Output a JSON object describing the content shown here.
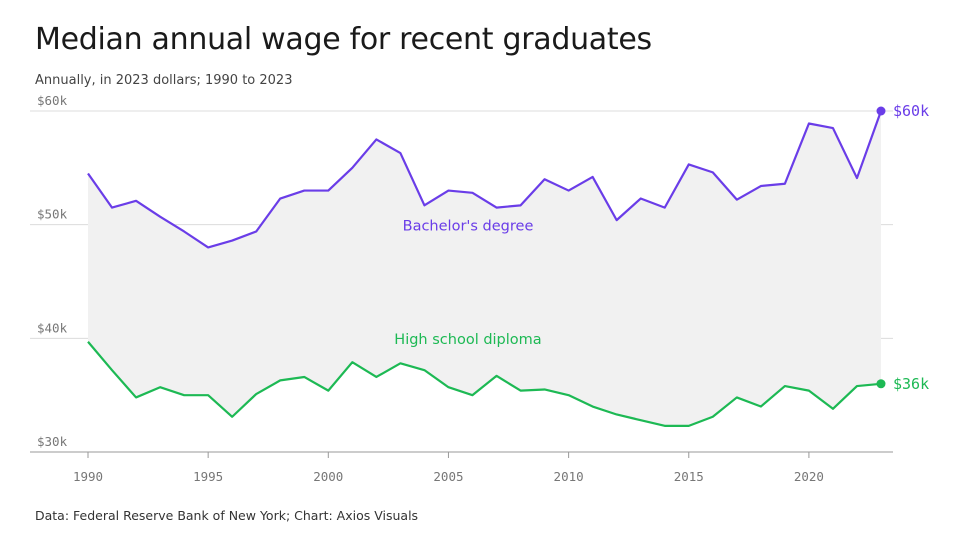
{
  "title": "Median annual wage for recent graduates",
  "subtitle": "Annually, in 2023 dollars; 1990 to 2023",
  "source": "Data: Federal Reserve Bank of New York; Chart: Axios Visuals",
  "chart_data": {
    "type": "line",
    "x": [
      1990,
      1991,
      1992,
      1993,
      1994,
      1995,
      1996,
      1997,
      1998,
      1999,
      2000,
      2001,
      2002,
      2003,
      2004,
      2005,
      2006,
      2007,
      2008,
      2009,
      2010,
      2011,
      2012,
      2013,
      2014,
      2015,
      2016,
      2017,
      2018,
      2019,
      2020,
      2021,
      2022,
      2023
    ],
    "x_ticks": [
      1990,
      1995,
      2000,
      2005,
      2010,
      2015,
      2020
    ],
    "y_ticks": [
      {
        "value": 30000,
        "label": "$30k"
      },
      {
        "value": 40000,
        "label": "$40k"
      },
      {
        "value": 50000,
        "label": "$50k"
      },
      {
        "value": 60000,
        "label": "$60k"
      }
    ],
    "ylim": [
      30000,
      60000
    ],
    "xlim": [
      1990,
      2023.5
    ],
    "grid": true,
    "shaded_between_series": true,
    "series": [
      {
        "name": "Bachelor's degree",
        "color": "#6a3de8",
        "end_label": "$60k",
        "values": [
          54500,
          51500,
          52100,
          50700,
          49400,
          48000,
          48600,
          49400,
          52300,
          53000,
          53000,
          55000,
          57500,
          56300,
          51700,
          53000,
          52800,
          51500,
          51700,
          54000,
          53000,
          54200,
          50400,
          52300,
          51500,
          55300,
          54600,
          52200,
          53400,
          53600,
          58900,
          58500,
          54100,
          60000
        ]
      },
      {
        "name": "High school diploma",
        "color": "#1db954",
        "end_label": "$36k",
        "values": [
          39700,
          37200,
          34800,
          35700,
          35000,
          35000,
          33100,
          35100,
          36300,
          36600,
          35400,
          37900,
          36600,
          37800,
          37200,
          35700,
          35000,
          36700,
          35400,
          35500,
          35000,
          34000,
          33300,
          32800,
          32300,
          32300,
          33100,
          34800,
          34000,
          35800,
          35400,
          33800,
          35800,
          36000
        ]
      }
    ]
  }
}
